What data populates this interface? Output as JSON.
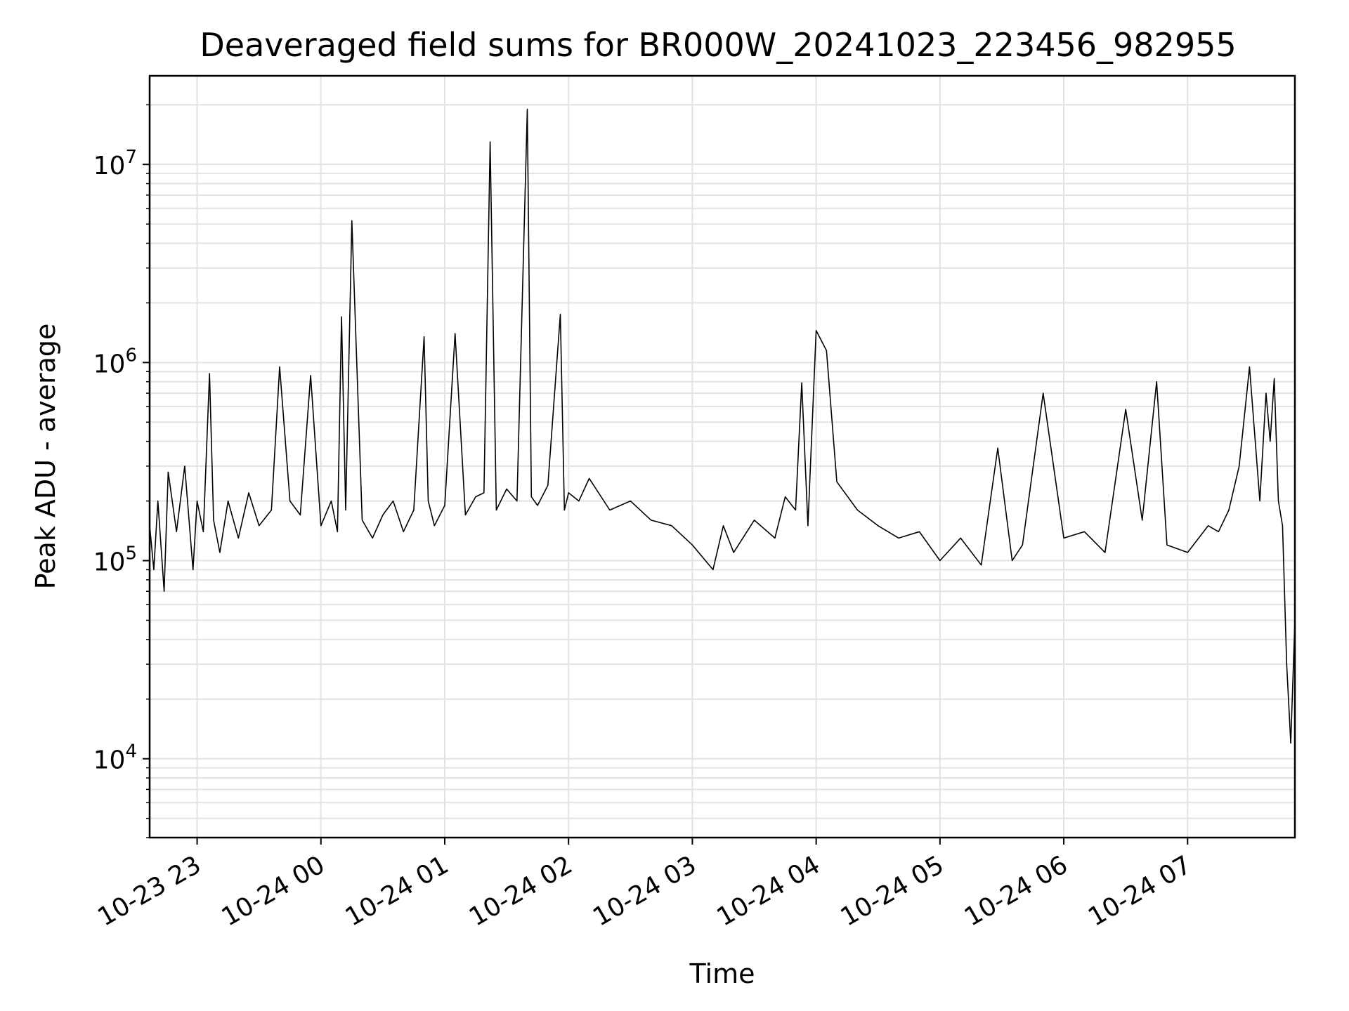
{
  "chart_data": {
    "type": "line",
    "title": "Deaveraged field sums for BR000W_20241023_223456_982955",
    "xlabel": "Time",
    "ylabel": "Peak ADU - average",
    "yscale": "log",
    "ylim": [
      4000,
      28000000
    ],
    "xlim": [
      "10-23 22:37",
      "10-24 07:52"
    ],
    "grid": "major and minor, light gray",
    "legend": "none",
    "line_color": "#000000",
    "x_ticks": [
      "10-23 23",
      "10-24 00",
      "10-24 01",
      "10-24 02",
      "10-24 03",
      "10-24 04",
      "10-24 05",
      "10-24 06",
      "10-24 07"
    ],
    "y_ticks": [
      {
        "value": 10000,
        "base": "10",
        "exp": "4"
      },
      {
        "value": 100000,
        "base": "10",
        "exp": "5"
      },
      {
        "value": 1000000,
        "base": "10",
        "exp": "6"
      },
      {
        "value": 10000000,
        "base": "10",
        "exp": "7"
      }
    ],
    "series": [
      {
        "x": [
          "10-23 22:37",
          "10-23 22:39",
          "10-23 22:41",
          "10-23 22:44",
          "10-23 22:46",
          "10-23 22:50",
          "10-23 22:54",
          "10-23 22:58",
          "10-23 23:00",
          "10-23 23:03",
          "10-23 23:06",
          "10-23 23:08",
          "10-23 23:11",
          "10-23 23:15",
          "10-23 23:20",
          "10-23 23:25",
          "10-23 23:30",
          "10-23 23:36",
          "10-23 23:40",
          "10-23 23:45",
          "10-23 23:50",
          "10-23 23:55",
          "10-24 00:00",
          "10-24 00:05",
          "10-24 00:08",
          "10-24 00:10",
          "10-24 00:12",
          "10-24 00:15",
          "10-24 00:20",
          "10-24 00:25",
          "10-24 00:30",
          "10-24 00:35",
          "10-24 00:40",
          "10-24 00:45",
          "10-24 00:50",
          "10-24 00:52",
          "10-24 00:55",
          "10-24 01:00",
          "10-24 01:05",
          "10-24 01:10",
          "10-24 01:15",
          "10-24 01:19",
          "10-24 01:22",
          "10-24 01:25",
          "10-24 01:30",
          "10-24 01:35",
          "10-24 01:40",
          "10-24 01:42",
          "10-24 01:45",
          "10-24 01:50",
          "10-24 01:56",
          "10-24 01:58",
          "10-24 02:00",
          "10-24 02:05",
          "10-24 02:10",
          "10-24 02:20",
          "10-24 02:30",
          "10-24 02:40",
          "10-24 02:50",
          "10-24 03:00",
          "10-24 03:10",
          "10-24 03:15",
          "10-24 03:20",
          "10-24 03:30",
          "10-24 03:40",
          "10-24 03:45",
          "10-24 03:50",
          "10-24 03:53",
          "10-24 03:56",
          "10-24 04:00",
          "10-24 04:05",
          "10-24 04:10",
          "10-24 04:20",
          "10-24 04:30",
          "10-24 04:40",
          "10-24 04:50",
          "10-24 05:00",
          "10-24 05:10",
          "10-24 05:20",
          "10-24 05:28",
          "10-24 05:35",
          "10-24 05:40",
          "10-24 05:50",
          "10-24 06:00",
          "10-24 06:10",
          "10-24 06:20",
          "10-24 06:30",
          "10-24 06:38",
          "10-24 06:45",
          "10-24 06:50",
          "10-24 07:00",
          "10-24 07:10",
          "10-24 07:15",
          "10-24 07:20",
          "10-24 07:25",
          "10-24 07:30",
          "10-24 07:35",
          "10-24 07:38",
          "10-24 07:40",
          "10-24 07:42",
          "10-24 07:44",
          "10-24 07:46",
          "10-24 07:48",
          "10-24 07:50",
          "10-24 07:52"
        ],
        "y": [
          150000,
          90000,
          200000,
          70000,
          280000,
          140000,
          300000,
          90000,
          200000,
          140000,
          880000,
          160000,
          110000,
          200000,
          130000,
          220000,
          150000,
          180000,
          950000,
          200000,
          170000,
          860000,
          150000,
          200000,
          140000,
          1700000,
          180000,
          5200000,
          160000,
          130000,
          170000,
          200000,
          140000,
          180000,
          1350000,
          200000,
          150000,
          190000,
          1400000,
          170000,
          210000,
          220000,
          13000000,
          180000,
          230000,
          200000,
          19000000,
          210000,
          190000,
          240000,
          1750000,
          180000,
          220000,
          200000,
          260000,
          180000,
          200000,
          160000,
          150000,
          120000,
          90000,
          150000,
          110000,
          160000,
          130000,
          210000,
          180000,
          790000,
          150000,
          1450000,
          1150000,
          250000,
          180000,
          150000,
          130000,
          140000,
          100000,
          130000,
          95000,
          370000,
          100000,
          120000,
          700000,
          130000,
          140000,
          110000,
          580000,
          160000,
          800000,
          120000,
          110000,
          150000,
          140000,
          180000,
          300000,
          950000,
          200000,
          700000,
          400000,
          830000,
          200000,
          150000,
          30000,
          12000,
          50000
        ]
      }
    ]
  }
}
